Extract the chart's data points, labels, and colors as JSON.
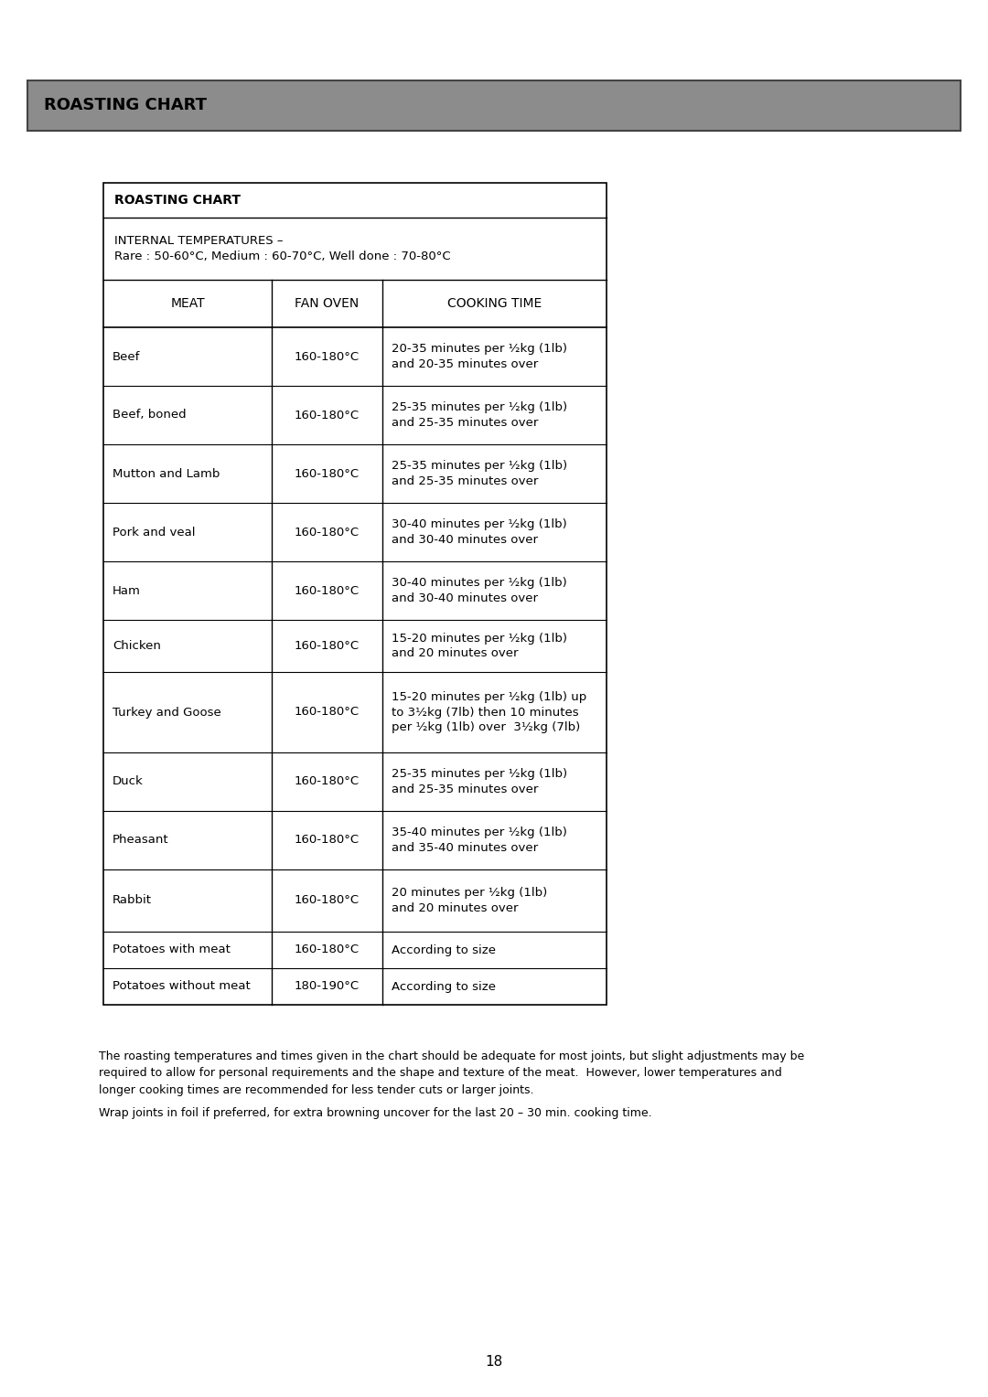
{
  "page_title": "ROASTING CHART",
  "page_title_bg": "#8c8c8c",
  "page_number": "18",
  "table_title": "ROASTING CHART",
  "internal_temps_line1": "INTERNAL TEMPERATURES –",
  "internal_temps_line2": "Rare : 50-60°C, Medium : 60-70°C, Well done : 70-80°C",
  "col_headers": [
    "MEAT",
    "FAN OVEN",
    "COOKING TIME"
  ],
  "rows": [
    [
      "Beef",
      "160-180°C",
      "20-35 minutes per ½kg (1lb)\nand 20-35 minutes over"
    ],
    [
      "Beef, boned",
      "160-180°C",
      "25-35 minutes per ½kg (1lb)\nand 25-35 minutes over"
    ],
    [
      "Mutton and Lamb",
      "160-180°C",
      "25-35 minutes per ½kg (1lb)\nand 25-35 minutes over"
    ],
    [
      "Pork and veal",
      "160-180°C",
      "30-40 minutes per ½kg (1lb)\nand 30-40 minutes over"
    ],
    [
      "Ham",
      "160-180°C",
      "30-40 minutes per ½kg (1lb)\nand 30-40 minutes over"
    ],
    [
      "Chicken",
      "160-180°C",
      "15-20 minutes per ½kg (1lb)\nand 20 minutes over"
    ],
    [
      "Turkey and Goose",
      "160-180°C",
      "15-20 minutes per ½kg (1lb) up\nto 3½kg (7lb) then 10 minutes\nper ½kg (1lb) over  3½kg (7lb)"
    ],
    [
      "Duck",
      "160-180°C",
      "25-35 minutes per ½kg (1lb)\nand 25-35 minutes over"
    ],
    [
      "Pheasant",
      "160-180°C",
      "35-40 minutes per ½kg (1lb)\nand 35-40 minutes over"
    ],
    [
      "Rabbit",
      "160-180°C",
      "20 minutes per ½kg (1lb)\nand 20 minutes over"
    ],
    [
      "Potatoes with meat",
      "160-180°C",
      "According to size"
    ],
    [
      "Potatoes without meat",
      "180-190°C",
      "According to size"
    ]
  ],
  "footer_para1": "The roasting temperatures and times given in the chart should be adequate for most joints, but slight adjustments may be\nrequired to allow for personal requirements and the shape and texture of the meat.  However, lower temperatures and\nlonger cooking times are recommended for less tender cuts or larger joints.",
  "footer_para2": "Wrap joints in foil if preferred, for extra browning uncover for the last 20 – 30 min. cooking time.",
  "bg_color": "#ffffff",
  "text_color": "#000000",
  "border_color": "#000000"
}
